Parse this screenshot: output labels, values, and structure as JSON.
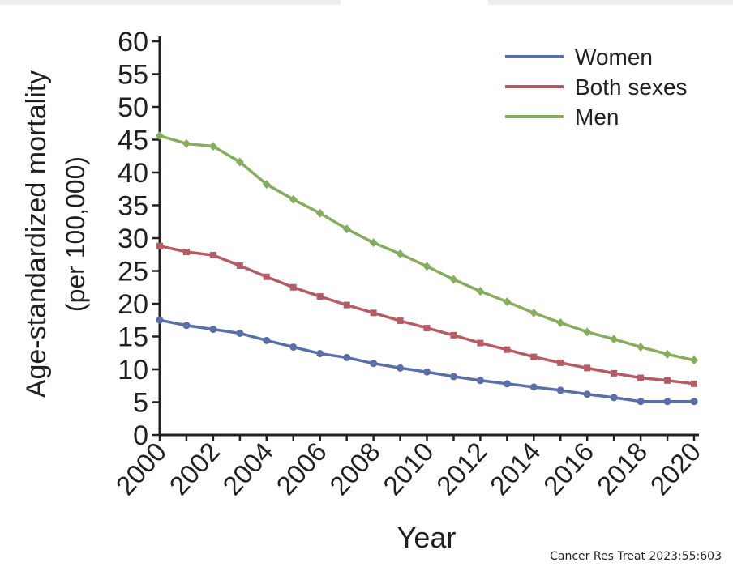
{
  "colors": {
    "top_bar": "#eeeeee",
    "axis": "#231f20",
    "women": "#5a6fa8",
    "both": "#b45b63",
    "men": "#86ad5c"
  },
  "chart_data": {
    "type": "line",
    "x": [
      2000,
      2001,
      2002,
      2003,
      2004,
      2005,
      2006,
      2007,
      2008,
      2009,
      2010,
      2011,
      2012,
      2013,
      2014,
      2015,
      2016,
      2017,
      2018,
      2019,
      2020
    ],
    "xticks": [
      2000,
      2002,
      2004,
      2006,
      2008,
      2010,
      2012,
      2014,
      2016,
      2018,
      2020
    ],
    "xtick_labels": [
      "2000",
      "2002",
      "2004",
      "2006",
      "2008",
      "2010",
      "2012",
      "2014",
      "2016",
      "2018",
      "2020"
    ],
    "xlim": [
      2000,
      2020
    ],
    "ylim": [
      0,
      60
    ],
    "yticks": [
      0,
      5,
      10,
      15,
      20,
      25,
      30,
      35,
      40,
      45,
      50,
      55,
      60
    ],
    "ytick_labels": [
      "0",
      "5",
      "10",
      "15",
      "20",
      "25",
      "30",
      "35",
      "40",
      "45",
      "50",
      "55",
      "60"
    ],
    "xlabel": "Year",
    "ylabel_line1": "Age-standardized mortality",
    "ylabel_line2": "(per 100,000)",
    "legend_position": "top-right",
    "grid": false,
    "series": [
      {
        "name": "Women",
        "color": "#5a6fa8",
        "marker": "circle",
        "values": [
          17.5,
          16.7,
          16.1,
          15.5,
          14.4,
          13.4,
          12.4,
          11.8,
          10.9,
          10.2,
          9.6,
          8.9,
          8.3,
          7.8,
          7.3,
          6.8,
          6.2,
          5.7,
          5.1,
          5.1,
          5.1
        ]
      },
      {
        "name": "Both sexes",
        "color": "#b45b63",
        "marker": "square",
        "values": [
          28.8,
          27.9,
          27.4,
          25.8,
          24.1,
          22.5,
          21.1,
          19.8,
          18.6,
          17.4,
          16.3,
          15.2,
          14.0,
          13.0,
          11.9,
          11.0,
          10.2,
          9.4,
          8.7,
          8.3,
          7.8
        ]
      },
      {
        "name": "Men",
        "color": "#86ad5c",
        "marker": "diamond",
        "values": [
          45.6,
          44.4,
          44.0,
          41.6,
          38.2,
          35.9,
          33.8,
          31.4,
          29.3,
          27.6,
          25.7,
          23.7,
          21.9,
          20.3,
          18.6,
          17.1,
          15.7,
          14.6,
          13.4,
          12.3,
          11.4
        ]
      }
    ]
  },
  "citation": "Cancer Res Treat 2023:55:603"
}
